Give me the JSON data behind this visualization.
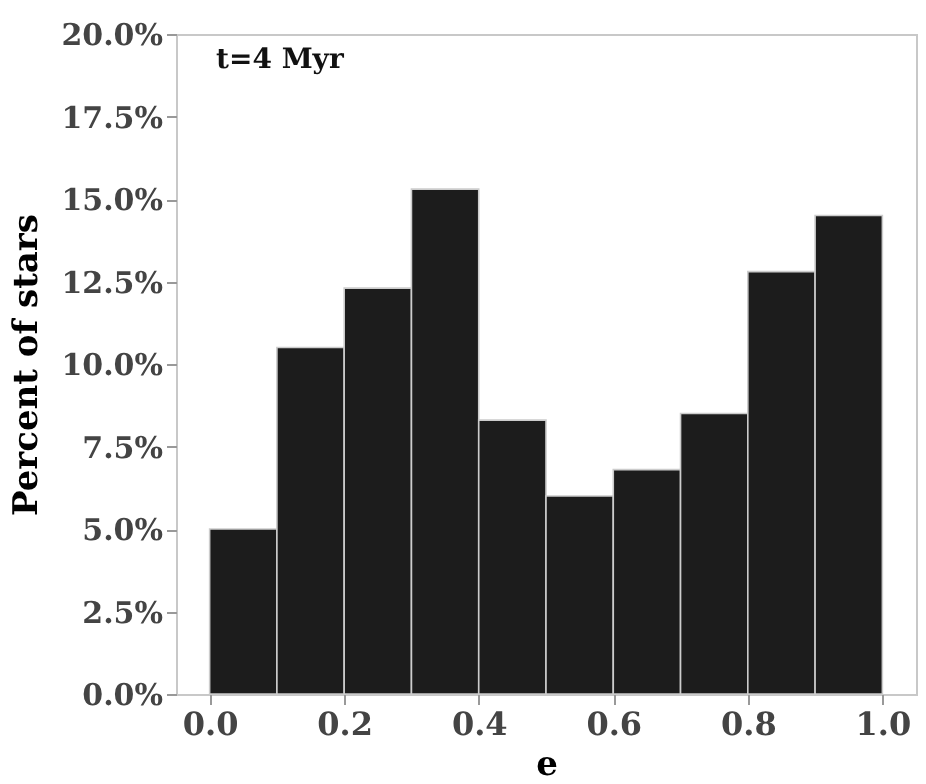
{
  "chart_data": {
    "type": "histogram",
    "xlabel": "e",
    "ylabel": "Percent of stars",
    "annotations": [
      "t=4 Myr"
    ],
    "bins": [
      0.0,
      0.1,
      0.2,
      0.3,
      0.4,
      0.5,
      0.6,
      0.7,
      0.8,
      0.9,
      1.0
    ],
    "values": [
      5.0,
      10.5,
      12.3,
      15.3,
      8.3,
      6.0,
      6.8,
      8.5,
      12.8,
      14.5
    ],
    "color": "#1c1c1c",
    "xlim": [
      -0.05,
      1.05
    ],
    "xticks": [
      {
        "value": 0,
        "label": "0.0"
      },
      {
        "value": 0.2,
        "label": "0.2"
      },
      {
        "value": 0.4,
        "label": "0.4"
      },
      {
        "value": 0.6,
        "label": "0.6"
      },
      {
        "value": 0.8,
        "label": "0.8"
      },
      {
        "value": 1,
        "label": "1.0"
      }
    ],
    "ylim": [
      0,
      20
    ],
    "yticks": [
      {
        "value": 0,
        "label": "0.0%"
      },
      {
        "value": 2.5,
        "label": "2.5%"
      },
      {
        "value": 5,
        "label": "5.0%"
      },
      {
        "value": 7.5,
        "label": "7.5%"
      },
      {
        "value": 10,
        "label": "10.0%"
      },
      {
        "value": 12.5,
        "label": "12.5%"
      },
      {
        "value": 15,
        "label": "15.0%"
      },
      {
        "value": 17.5,
        "label": "17.5%"
      },
      {
        "value": 20,
        "label": "20.0%"
      }
    ],
    "grid": false
  }
}
